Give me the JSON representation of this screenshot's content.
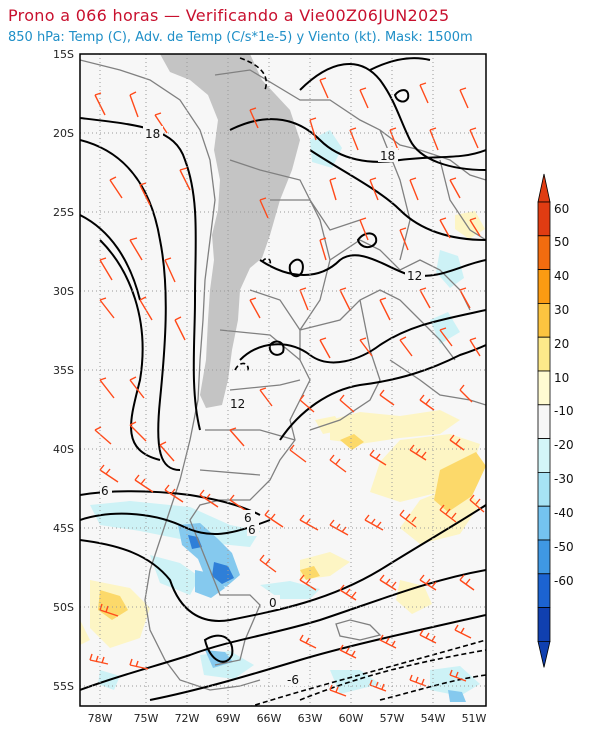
{
  "title_line1": "Prono a 066 horas — Verificando a Vie00Z06JUN2025",
  "title_line2": "850 hPa: Temp (C), Adv. de Temp (C/s*1e-5) y Viento (kt). Mask: 1500m",
  "lat_ticks": [
    "15S",
    "20S",
    "25S",
    "30S",
    "35S",
    "40S",
    "45S",
    "50S",
    "55S"
  ],
  "lon_ticks": [
    "78W",
    "75W",
    "72W",
    "69W",
    "66W",
    "63W",
    "60W",
    "57W",
    "54W",
    "51W"
  ],
  "contour_labels": [
    "18",
    "18",
    "12",
    "12",
    "6",
    "6",
    "6",
    "0",
    "-6"
  ],
  "colorbar": {
    "labels": [
      "60",
      "50",
      "40",
      "30",
      "20",
      "10",
      "-10",
      "-20",
      "-30",
      "-40",
      "-50",
      "-60"
    ],
    "colors": [
      "#e03c12",
      "#f26c0f",
      "#fb9b12",
      "#fcc440",
      "#fde98a",
      "#fffbd2",
      "#f7f7f7",
      "#d3f6f8",
      "#a6e3f5",
      "#74c3f0",
      "#3f98e3",
      "#1c63d1",
      "#1040b0"
    ]
  },
  "colors": {
    "mask": "#c4c4c4",
    "wind_barb": "#ff4a1a",
    "contour": "#000000",
    "map_background": "#f7f7f7",
    "borders": "#808080"
  }
}
